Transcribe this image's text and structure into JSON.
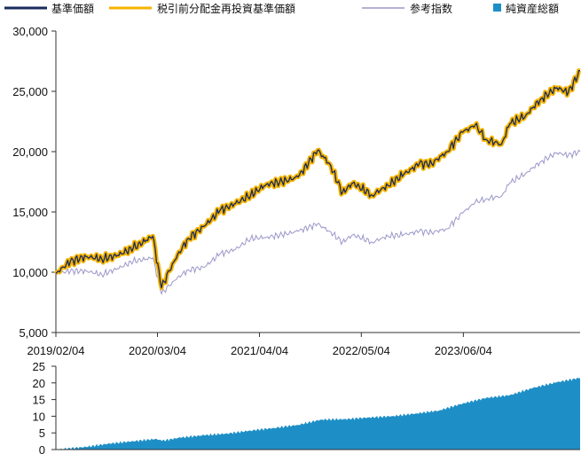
{
  "legend": [
    {
      "label": "基準価額",
      "color": "#1a2a5c",
      "kind": "line"
    },
    {
      "label": "税引前分配金再投資基準価額",
      "color": "#f5b400",
      "kind": "line"
    },
    {
      "label": "参考指数",
      "color": "#9b97c9",
      "kind": "line"
    },
    {
      "label": "純資産総額",
      "color": "#1e8fc6",
      "kind": "square"
    }
  ],
  "chart_data": [
    {
      "type": "line",
      "xlim": [
        "2019/02/04",
        "2024/08/30"
      ],
      "ylim": [
        5000,
        30000
      ],
      "yticks": [
        "5,000",
        "10,000",
        "15,000",
        "20,000",
        "25,000",
        "30,000"
      ],
      "xticks": [
        "2019/02/04",
        "2020/03/04",
        "2021/04/04",
        "2022/05/04",
        "2023/06/04"
      ],
      "grid": false,
      "legend_position": "top",
      "series": [
        {
          "name": "基準価額",
          "color": "#1a2a5c",
          "x": [
            "2019/02/04",
            "2019/04/01",
            "2019/06/01",
            "2019/08/01",
            "2019/10/01",
            "2019/12/01",
            "2020/02/15",
            "2020/03/20",
            "2020/05/01",
            "2020/07/01",
            "2020/09/01",
            "2020/11/01",
            "2021/01/01",
            "2021/03/01",
            "2021/05/01",
            "2021/07/01",
            "2021/09/01",
            "2021/11/15",
            "2022/01/01",
            "2022/02/20",
            "2022/04/01",
            "2022/06/15",
            "2022/08/15",
            "2022/10/15",
            "2022/12/15",
            "2023/02/01",
            "2023/04/01",
            "2023/06/01",
            "2023/07/20",
            "2023/09/01",
            "2023/10/30",
            "2023/12/01",
            "2024/02/01",
            "2024/04/01",
            "2024/06/01",
            "2024/07/15",
            "2024/08/30"
          ],
          "y": [
            9900,
            10900,
            11300,
            11100,
            11400,
            12000,
            13000,
            8700,
            10700,
            12800,
            13800,
            15100,
            15700,
            16400,
            17300,
            17500,
            17900,
            20100,
            19000,
            16600,
            17400,
            16400,
            17200,
            18100,
            19000,
            19000,
            20000,
            21600,
            22200,
            21000,
            20600,
            22300,
            23000,
            24400,
            25300,
            24900,
            26700
          ]
        },
        {
          "name": "税引前分配金再投資基準価額",
          "color": "#f5b400",
          "x": [
            "2019/02/04",
            "2019/04/01",
            "2019/06/01",
            "2019/08/01",
            "2019/10/01",
            "2019/12/01",
            "2020/02/15",
            "2020/03/20",
            "2020/05/01",
            "2020/07/01",
            "2020/09/01",
            "2020/11/01",
            "2021/01/01",
            "2021/03/01",
            "2021/05/01",
            "2021/07/01",
            "2021/09/01",
            "2021/11/15",
            "2022/01/01",
            "2022/02/20",
            "2022/04/01",
            "2022/06/15",
            "2022/08/15",
            "2022/10/15",
            "2022/12/15",
            "2023/02/01",
            "2023/04/01",
            "2023/06/01",
            "2023/07/20",
            "2023/09/01",
            "2023/10/30",
            "2023/12/01",
            "2024/02/01",
            "2024/04/01",
            "2024/06/01",
            "2024/07/15",
            "2024/08/30"
          ],
          "y": [
            9900,
            10900,
            11300,
            11100,
            11400,
            12000,
            13000,
            8700,
            10700,
            12800,
            13800,
            15100,
            15700,
            16400,
            17300,
            17500,
            17900,
            20100,
            19000,
            16600,
            17400,
            16400,
            17200,
            18100,
            19000,
            19000,
            20000,
            21600,
            22200,
            21000,
            20600,
            22300,
            23000,
            24400,
            25300,
            24900,
            26700
          ]
        },
        {
          "name": "参考指数",
          "color": "#9b97c9",
          "x": [
            "2019/02/04",
            "2019/04/01",
            "2019/06/01",
            "2019/08/01",
            "2019/10/01",
            "2019/12/01",
            "2020/02/15",
            "2020/03/20",
            "2020/05/01",
            "2020/07/01",
            "2020/09/01",
            "2020/11/01",
            "2021/01/01",
            "2021/03/01",
            "2021/05/01",
            "2021/07/01",
            "2021/09/01",
            "2021/11/15",
            "2022/01/01",
            "2022/02/20",
            "2022/04/01",
            "2022/06/15",
            "2022/08/15",
            "2022/10/15",
            "2022/12/15",
            "2023/02/01",
            "2023/04/01",
            "2023/06/01",
            "2023/07/20",
            "2023/09/01",
            "2023/10/30",
            "2023/12/01",
            "2024/02/01",
            "2024/04/01",
            "2024/06/01",
            "2024/07/15",
            "2024/08/30"
          ],
          "y": [
            9900,
            10100,
            10100,
            9800,
            10300,
            10900,
            11200,
            8200,
            9200,
            10200,
            10400,
            11500,
            11900,
            12800,
            12900,
            13100,
            13400,
            14000,
            13400,
            12500,
            13100,
            12500,
            13000,
            13100,
            13400,
            13300,
            13600,
            14900,
            15800,
            16100,
            16300,
            17400,
            18200,
            19200,
            19900,
            19700,
            20000
          ]
        }
      ]
    },
    {
      "type": "area",
      "name": "純資産総額",
      "color": "#1e8fc6",
      "xlim": [
        "2019/02/04",
        "2024/08/30"
      ],
      "ylim": [
        0,
        25
      ],
      "yticks": [
        "0",
        "5",
        "10",
        "15",
        "20",
        "25"
      ],
      "grid": false,
      "x": [
        "2019/02/04",
        "2019/06/01",
        "2019/09/01",
        "2019/12/01",
        "2020/03/01",
        "2020/03/20",
        "2020/06/01",
        "2020/09/01",
        "2020/12/01",
        "2021/03/01",
        "2021/06/01",
        "2021/09/01",
        "2021/12/01",
        "2022/03/01",
        "2022/06/01",
        "2022/09/01",
        "2022/12/01",
        "2023/03/01",
        "2023/06/01",
        "2023/09/01",
        "2023/12/01",
        "2024/03/01",
        "2024/06/01",
        "2024/08/30"
      ],
      "values": [
        0,
        0.8,
        1.8,
        2.5,
        3.2,
        2.6,
        3.6,
        4.3,
        4.8,
        5.7,
        6.5,
        7.4,
        9.0,
        9.1,
        9.6,
        10.0,
        10.8,
        11.7,
        13.8,
        15.5,
        16.3,
        18.5,
        20.2,
        21.5
      ]
    }
  ]
}
